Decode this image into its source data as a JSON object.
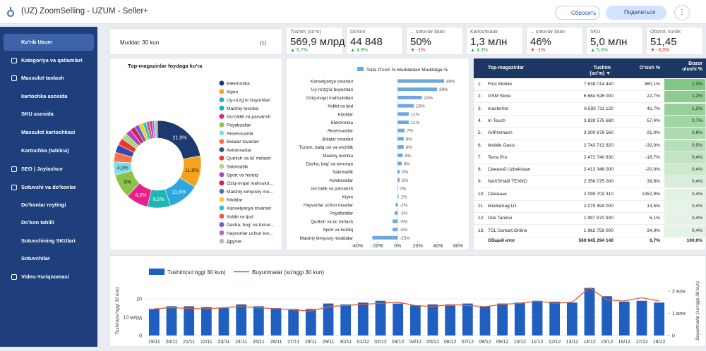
{
  "header": {
    "title": "(UZ) ZoomSelling - UZUM - Seller+",
    "reset": "Сбросить",
    "share": "Поделиться"
  },
  "sidebar": [
    "Ko'rib Uzum",
    "Kategoriya va qatlamlari",
    "Maxsulot tanlash",
    "kartochka asosida",
    "SKU asosida",
    "Maxsulot kartochkasi",
    "Kartochka (tablica)",
    "SEO | Joylashuv",
    "Sotuvchi va do'konlar",
    "Do'konlar reytingi",
    "Do'kon tahlili",
    "Sotuvchining SKUlari",
    "Sotuvchilar",
    "Video-Yuriqnomasi"
  ],
  "filter": {
    "label": "Muddat: 30 kun",
    "count": "(1)"
  },
  "kpis": [
    {
      "title": "Tushim (so'm)",
      "value": "569,9 млрд",
      "delta": "▲ 6,7%"
    },
    {
      "title": "Do'kon",
      "value": "44 848",
      "delta": "▲ 4,9%"
    },
    {
      "title": "... sotuvlar bilan",
      "value": "50%",
      "delta": "▼ -1%"
    },
    {
      "title": "Kartochkalar",
      "value": "1,3 млн",
      "delta": "▲ 4,3%"
    },
    {
      "title": "... sotuvlar bilan",
      "value": "46%",
      "delta": "▼ -1%"
    },
    {
      "title": "SKU",
      "value": "5,0 млн",
      "delta": "▲ 5,0%"
    },
    {
      "title": "Oborot, kunlik",
      "value": "51,45",
      "delta": "▼ -3,3%"
    }
  ],
  "table": {
    "columns": [
      "Top-magazinlar",
      "Tushim (so'm) ▼",
      "O'sish %",
      "Bozor ulushi %"
    ],
    "rows": [
      [
        "1.",
        "First Mobile",
        "7 638 014 440",
        "360,1%",
        "1,3%"
      ],
      [
        "2.",
        "GSM Store",
        "6 684 526 000",
        "22,7%",
        "1,2%"
      ],
      [
        "3.",
        "masterfon",
        "6 593 711 120",
        "42,7%",
        "1,2%"
      ],
      [
        "4.",
        "In Touch",
        "3 839 575 680",
        "57,4%",
        "0,7%"
      ],
      [
        "5.",
        "ArtPremium",
        "3 300 878 560",
        "21,0%",
        "0,6%"
      ],
      [
        "6.",
        "Mobile Oasis",
        "2 743 713 920",
        "-32,0%",
        "0,5%"
      ],
      [
        "7.",
        "Terra Pro",
        "2 472 740 830",
        "-18,7%",
        "0,4%"
      ],
      [
        "8.",
        "Связной Uzbekistan",
        "2 413 348 000",
        "-20,0%",
        "0,4%"
      ],
      [
        "9.",
        "NAXSHAB TEXNO",
        "2 356 075 000",
        "39,9%",
        "0,4%"
      ],
      [
        "10.",
        "Связные",
        "2 099 703 310",
        "1052,9%",
        "0,4%"
      ],
      [
        "11.",
        "Mediamag.Uz",
        "2 079 494 000",
        "13,5%",
        "0,4%"
      ],
      [
        "12.",
        "Oila Tanlovi",
        "1 997 970 930",
        "5,1%",
        "0,4%"
      ],
      [
        "13.",
        "TCL Ssmart.Online",
        "1 962 759 000",
        "34,9%",
        "0,4%"
      ]
    ],
    "footer": [
      "Общий итог",
      "569 945 294 140",
      "6,7%",
      "100,0%"
    ]
  },
  "chart_data": [
    {
      "type": "pie",
      "title": "Top-magazinlar foydaga ko'ra",
      "categories": [
        "Elektronika",
        "Kiyim",
        "Uy-ro'zg'or buyumlari",
        "Maishiy texnika",
        "Go'zallik va parvarish",
        "Poyabzallar",
        "Aksessuarlar",
        "Bolalar tovarlari",
        "Avtotovarlar",
        "Qurilish va ta' mirlash",
        "Salomatlik",
        "Sport va hordiq",
        "Oziq-ovqat mahsulot...",
        "Maishiy kimyoviy mo...",
        "Kitoblar",
        "Kanselyariya tovarlari",
        "Xobbi va ijod",
        "Dacha, bog' va tomor...",
        "Hayvonlar uchun tov...",
        "Другое"
      ],
      "values": [
        21.9,
        11.8,
        11.5,
        8.5,
        8.3,
        9,
        4.9,
        3.5,
        3,
        2.6,
        2.3,
        2.1,
        1.9,
        1.7,
        1.5,
        1.3,
        1.2,
        1.0,
        0.8,
        1.2
      ],
      "value_labels": [
        "21,9%",
        "11,8%",
        "11,5%",
        "8,5%",
        "8,3%",
        "9%",
        "4,9%",
        null,
        null,
        null,
        null,
        null,
        null,
        null,
        null,
        null,
        null,
        null,
        null,
        null
      ],
      "colors": [
        "#1d3a6e",
        "#f6a21e",
        "#2ea7e0",
        "#1eb6b0",
        "#e91e8c",
        "#8bc34a",
        "#80deea",
        "#ff7043",
        "#3949ab",
        "#e53935",
        "#aed581",
        "#ab47bc",
        "#d81b60",
        "#5c6bc0",
        "#ffca28",
        "#26c6da",
        "#ef5350",
        "#7e57c2",
        "#ba68c8",
        "#bdbdbd"
      ]
    },
    {
      "type": "hbar",
      "categories": [
        "Kanselyariya tovarlari",
        "Uy-ro'zg'or buyumlari",
        "Oziq-ovqat mahsulotlari",
        "Xobbi va ijod",
        "Kitoblar",
        "Elektronika",
        "Aksessuarlar",
        "Bolalar tovarlari",
        "Turizm, baliq ovi va ovchilik",
        "Maishiy texnika",
        "Dacha, bog' va tomorqa",
        "Salomatlik",
        "Avtotovarlar",
        "Go'zallik va parvarish",
        "Kiyim",
        "Hayvonlar uchun tovarlar",
        "Poyabzallar",
        "Qurilish va ta' mirlash",
        "Sport va hordiq",
        "Maishiy kimyoviy moddalar"
      ],
      "series": [
        {
          "name": "Toifa O'sish % Muddatdan Muddatga %",
          "color": "#6aa8e0",
          "values": [
            46,
            39,
            24,
            16,
            11,
            11,
            7,
            6,
            6,
            5,
            4,
            2,
            2,
            0,
            1,
            -2,
            -3,
            -5,
            -5,
            -25
          ],
          "value_labels": [
            "46%",
            "39%",
            "24%",
            "16%",
            "11%",
            "11%",
            "7%",
            "6%",
            "6%",
            "5%",
            "4%",
            "2%",
            "2%",
            "0%",
            "1%",
            "-2%",
            "-3%",
            "-5%",
            "-5%",
            "-25%"
          ]
        }
      ],
      "xlim": [
        -40,
        60
      ],
      "xticks": [
        {
          "value": -40,
          "label": "-40%"
        },
        {
          "value": -20,
          "label": "-20%"
        },
        {
          "value": 0,
          "label": "0%"
        },
        {
          "value": 20,
          "label": "20%"
        },
        {
          "value": 40,
          "label": "40%"
        },
        {
          "value": 60,
          "label": "60%"
        }
      ]
    },
    {
      "type": "combo",
      "categories": [
        "19/11",
        "20/11",
        "21/11",
        "22/11",
        "23/11",
        "24/11",
        "25/11",
        "26/11",
        "27/11",
        "28/11",
        "29/11",
        "30/11",
        "01/12",
        "02/12",
        "03/12",
        "04/12",
        "05/12",
        "06/12",
        "07/12",
        "08/12",
        "09/12",
        "10/12",
        "11/12",
        "12/12",
        "13/12",
        "14/12",
        "15/12",
        "16/12",
        "17/12",
        "18/12"
      ],
      "series": [
        {
          "name": "Tushim(so'nggi 30 kun)",
          "type": "bar",
          "color": "#1f5fbf",
          "values": [
            14.5,
            16,
            16,
            15.5,
            15,
            17,
            16,
            15,
            14.5,
            14.5,
            17.5,
            17,
            18,
            19,
            17.5,
            16.5,
            17,
            16.5,
            17.5,
            16,
            17.5,
            18,
            19,
            18.5,
            18,
            26,
            21.5,
            18.5,
            19,
            18
          ]
        },
        {
          "name": "Buyurtmalar (so'nggi 30 kun)",
          "type": "line",
          "axis": "y2",
          "color": "#e0603a",
          "values": [
            1.2,
            1.25,
            1.22,
            1.2,
            1.25,
            1.3,
            1.25,
            1.2,
            1.15,
            1.1,
            1.3,
            1.35,
            1.4,
            1.45,
            1.5,
            1.35,
            1.3,
            1.4,
            1.35,
            1.3,
            1.4,
            1.45,
            1.55,
            1.45,
            1.5,
            2.15,
            1.6,
            1.55,
            1.7,
            1.55
          ]
        }
      ],
      "ylabel": "Tushim(so'nggi 30 kun)",
      "y2label": "Buyurtmalar (so'nggi 30 kun)",
      "ylim": [
        0,
        27
      ],
      "yticks": [
        0,
        {
          "value": 10,
          "label": "10 млрд"
        },
        20
      ],
      "y2lim": [
        0,
        2.22
      ],
      "y2ticks": [
        0,
        {
          "value": 1,
          "label": "1 млн"
        },
        {
          "value": 2,
          "label": "2 млн"
        }
      ],
      "grid": true
    }
  ]
}
